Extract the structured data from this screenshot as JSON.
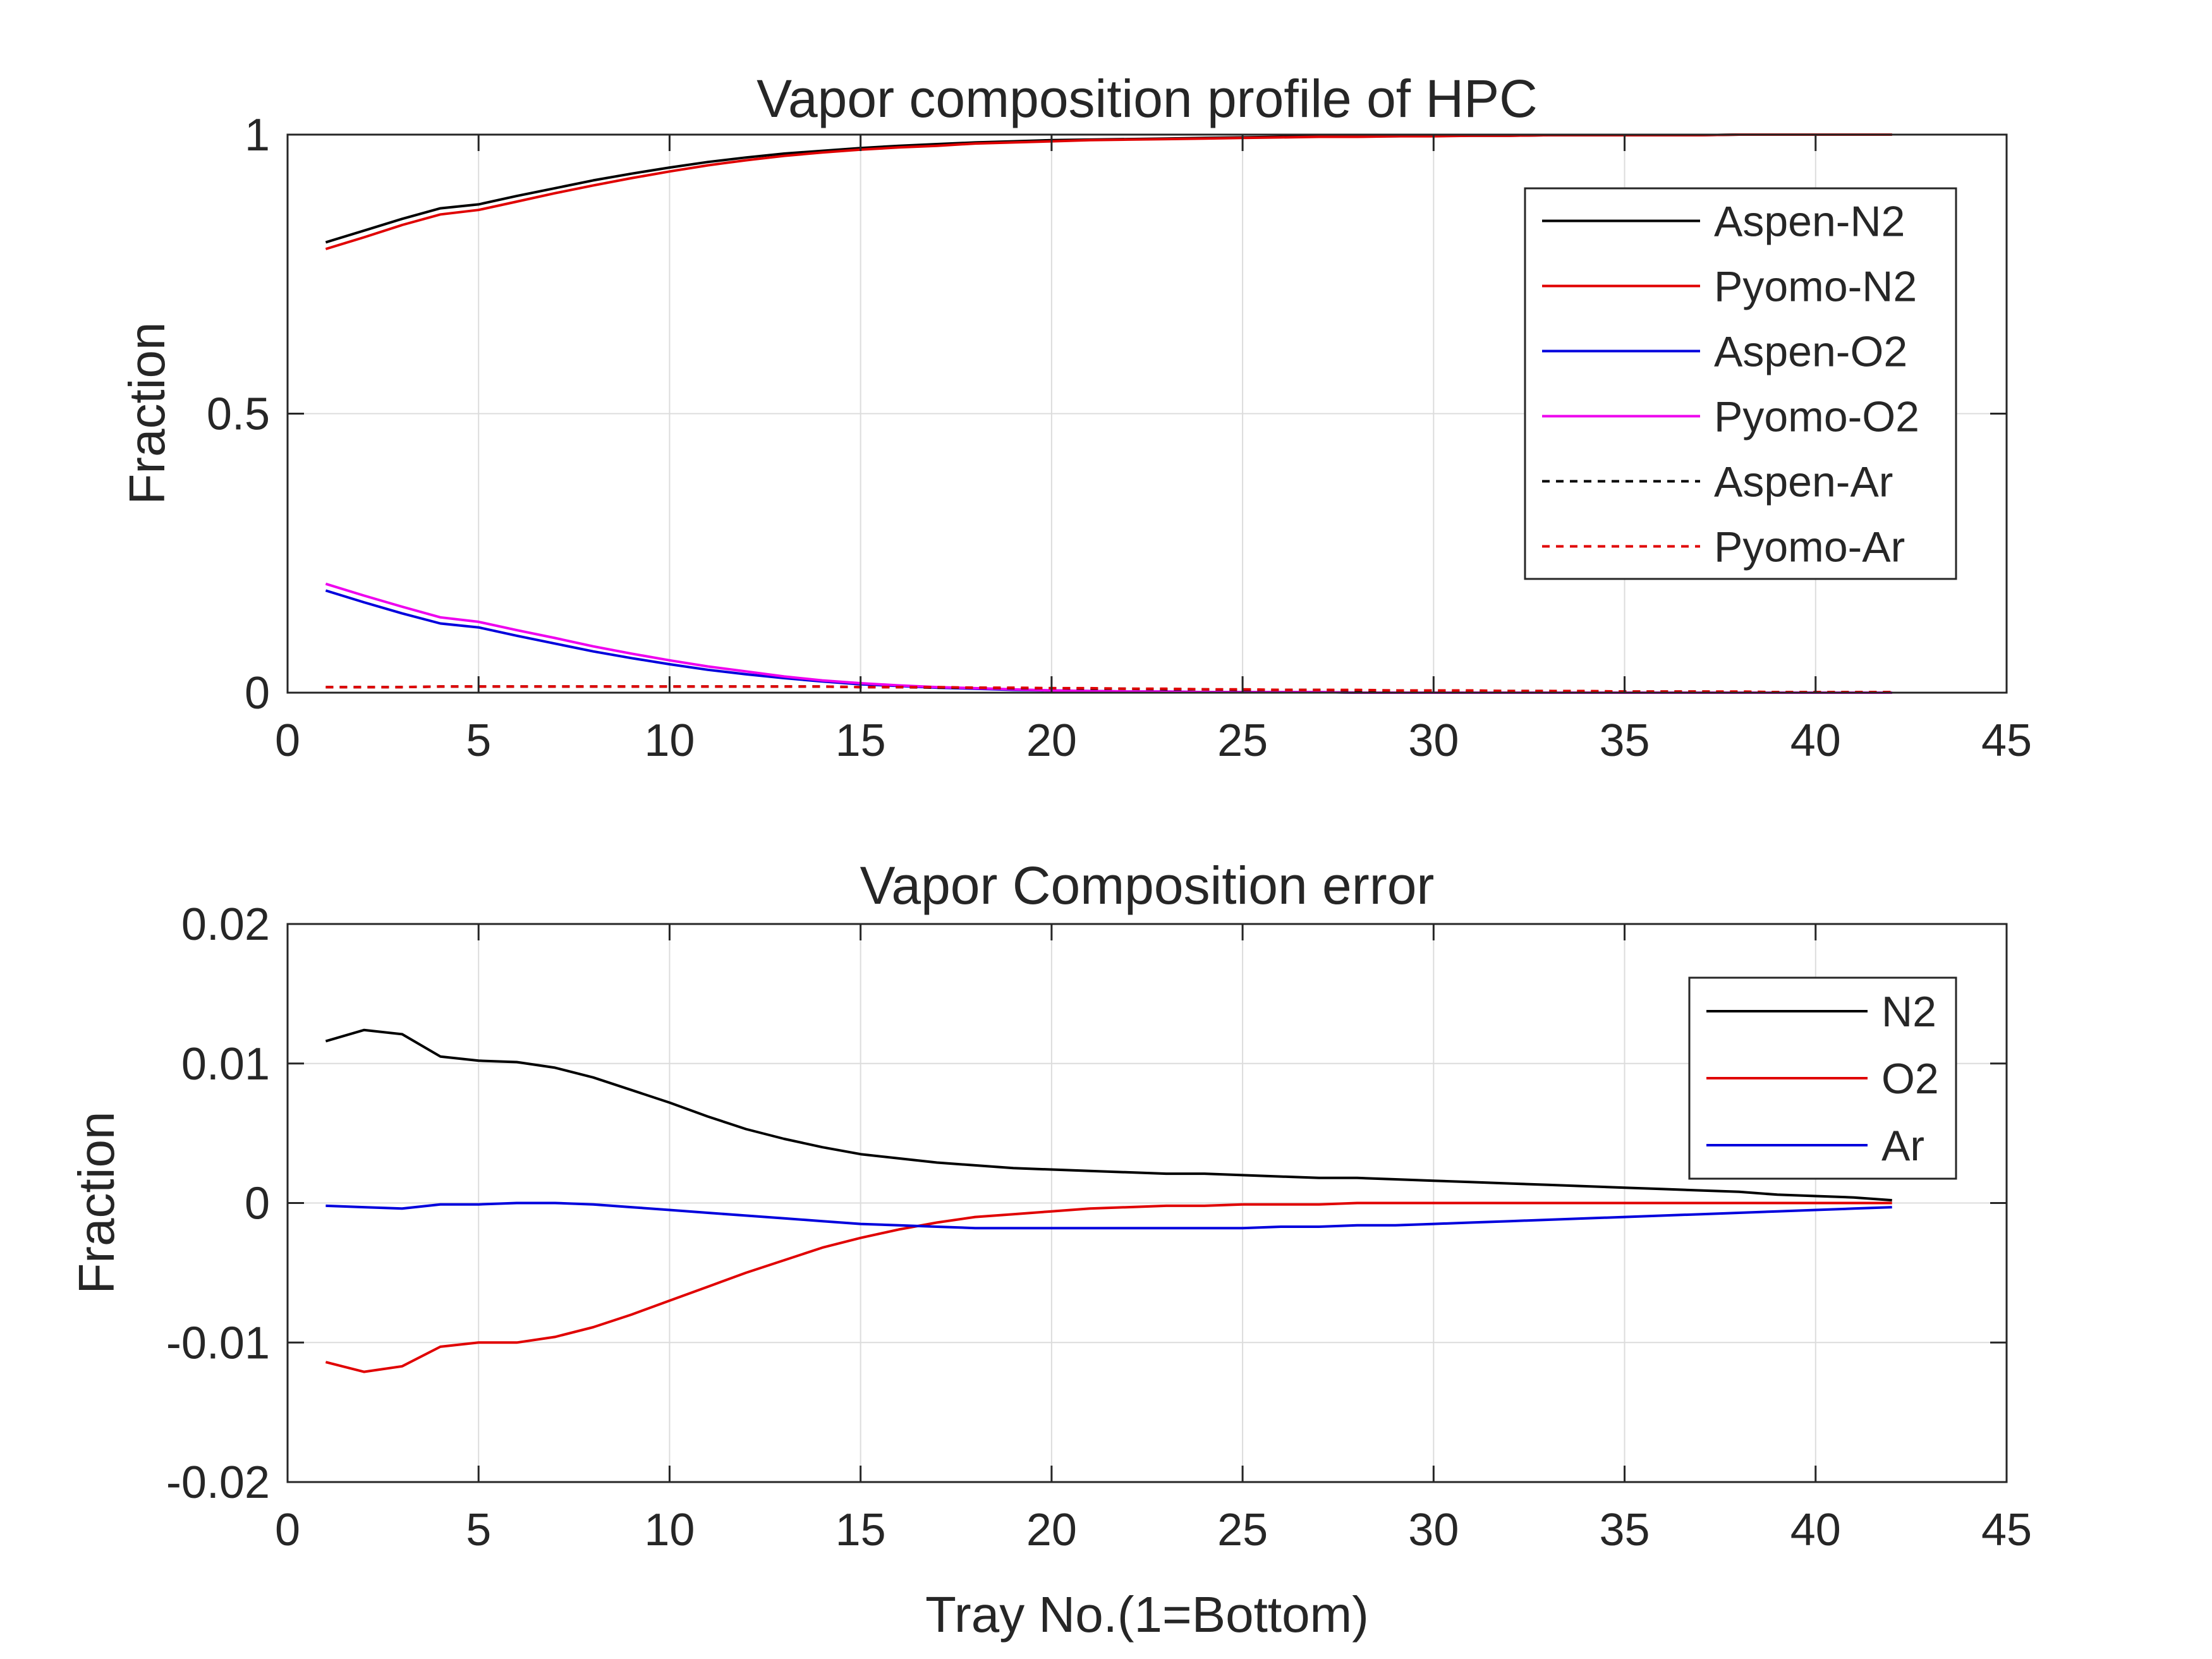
{
  "chart_data": [
    {
      "type": "line",
      "title": "Vapor composition profile of HPC",
      "xlabel": "",
      "ylabel": "Fraction",
      "xlim": [
        0,
        45
      ],
      "ylim": [
        0,
        1
      ],
      "xticks": [
        "0",
        "5",
        "10",
        "15",
        "20",
        "25",
        "30",
        "35",
        "40",
        "45"
      ],
      "yticks": [
        "0",
        "0.5",
        "1"
      ],
      "grid": true,
      "legend_position": "top-right",
      "x": [
        1,
        2,
        3,
        4,
        5,
        6,
        7,
        8,
        9,
        10,
        11,
        12,
        13,
        14,
        15,
        16,
        17,
        18,
        19,
        20,
        21,
        22,
        23,
        24,
        25,
        26,
        27,
        28,
        29,
        30,
        31,
        32,
        33,
        34,
        35,
        36,
        37,
        38,
        39,
        40,
        41,
        42
      ],
      "series": [
        {
          "name": "Aspen-N2",
          "color": "#000000",
          "dash": false,
          "values": [
            0.807,
            0.828,
            0.849,
            0.868,
            0.875,
            0.89,
            0.904,
            0.918,
            0.93,
            0.941,
            0.951,
            0.959,
            0.966,
            0.971,
            0.976,
            0.98,
            0.983,
            0.986,
            0.988,
            0.99,
            0.991,
            0.992,
            0.993,
            0.994,
            0.995,
            0.996,
            0.996,
            0.997,
            0.997,
            0.998,
            0.998,
            0.998,
            0.999,
            0.999,
            0.999,
            0.999,
            0.999,
            1.0,
            1.0,
            1.0,
            1.0,
            1.0
          ]
        },
        {
          "name": "Pyomo-N2",
          "color": "#e00000",
          "dash": false,
          "values": [
            0.795,
            0.816,
            0.838,
            0.857,
            0.865,
            0.88,
            0.895,
            0.909,
            0.922,
            0.934,
            0.945,
            0.954,
            0.962,
            0.968,
            0.973,
            0.977,
            0.98,
            0.984,
            0.986,
            0.988,
            0.99,
            0.991,
            0.992,
            0.993,
            0.994,
            0.995,
            0.996,
            0.996,
            0.997,
            0.997,
            0.998,
            0.998,
            0.999,
            0.999,
            0.999,
            0.999,
            0.999,
            1.0,
            1.0,
            1.0,
            1.0,
            1.0
          ]
        },
        {
          "name": "Aspen-O2",
          "color": "#0000dd",
          "dash": false,
          "values": [
            0.183,
            0.162,
            0.142,
            0.124,
            0.117,
            0.102,
            0.088,
            0.074,
            0.062,
            0.051,
            0.041,
            0.033,
            0.026,
            0.02,
            0.015,
            0.012,
            0.009,
            0.007,
            0.005,
            0.004,
            0.003,
            0.002,
            0.002,
            0.001,
            0.001,
            0.001,
            0.001,
            0.0,
            0.0,
            0.0,
            0.0,
            0.0,
            0.0,
            0.0,
            0.0,
            0.0,
            0.0,
            0.0,
            0.0,
            0.0,
            0.0,
            0.0
          ]
        },
        {
          "name": "Pyomo-O2",
          "color": "#ee00ee",
          "dash": false,
          "values": [
            0.195,
            0.174,
            0.154,
            0.135,
            0.127,
            0.112,
            0.098,
            0.083,
            0.07,
            0.058,
            0.047,
            0.038,
            0.029,
            0.022,
            0.017,
            0.013,
            0.01,
            0.008,
            0.006,
            0.004,
            0.003,
            0.002,
            0.002,
            0.001,
            0.001,
            0.001,
            0.001,
            0.0,
            0.0,
            0.0,
            0.0,
            0.0,
            0.0,
            0.0,
            0.0,
            0.0,
            0.0,
            0.0,
            0.0,
            0.0,
            0.0,
            0.0
          ]
        },
        {
          "name": "Aspen-Ar",
          "color": "#000000",
          "dash": true,
          "values": [
            0.01,
            0.01,
            0.01,
            0.011,
            0.011,
            0.011,
            0.011,
            0.011,
            0.011,
            0.011,
            0.011,
            0.011,
            0.011,
            0.011,
            0.01,
            0.01,
            0.009,
            0.009,
            0.008,
            0.008,
            0.007,
            0.007,
            0.006,
            0.006,
            0.005,
            0.005,
            0.005,
            0.004,
            0.004,
            0.004,
            0.003,
            0.003,
            0.003,
            0.002,
            0.002,
            0.002,
            0.002,
            0.001,
            0.001,
            0.001,
            0.001,
            0.001
          ]
        },
        {
          "name": "Pyomo-Ar",
          "color": "#e00000",
          "dash": true,
          "values": [
            0.01,
            0.01,
            0.01,
            0.011,
            0.011,
            0.011,
            0.011,
            0.011,
            0.011,
            0.011,
            0.011,
            0.011,
            0.011,
            0.011,
            0.01,
            0.01,
            0.01,
            0.009,
            0.009,
            0.008,
            0.008,
            0.007,
            0.007,
            0.006,
            0.006,
            0.005,
            0.005,
            0.005,
            0.004,
            0.004,
            0.004,
            0.003,
            0.003,
            0.003,
            0.002,
            0.002,
            0.002,
            0.002,
            0.001,
            0.001,
            0.001,
            0.001
          ]
        }
      ]
    },
    {
      "type": "line",
      "title": "Vapor Composition error",
      "xlabel": "Tray No.(1=Bottom)",
      "ylabel": "Fraction",
      "xlim": [
        0,
        45
      ],
      "ylim": [
        -0.02,
        0.02
      ],
      "xticks": [
        "0",
        "5",
        "10",
        "15",
        "20",
        "25",
        "30",
        "35",
        "40",
        "45"
      ],
      "yticks": [
        "-0.02",
        "-0.01",
        "0",
        "0.01",
        "0.02"
      ],
      "grid": true,
      "legend_position": "top-right",
      "x": [
        1,
        2,
        3,
        4,
        5,
        6,
        7,
        8,
        9,
        10,
        11,
        12,
        13,
        14,
        15,
        16,
        17,
        18,
        19,
        20,
        21,
        22,
        23,
        24,
        25,
        26,
        27,
        28,
        29,
        30,
        31,
        32,
        33,
        34,
        35,
        36,
        37,
        38,
        39,
        40,
        41,
        42
      ],
      "series": [
        {
          "name": "N2",
          "color": "#000000",
          "dash": false,
          "values": [
            0.0116,
            0.0124,
            0.0121,
            0.0105,
            0.0102,
            0.0101,
            0.0097,
            0.009,
            0.0081,
            0.0072,
            0.0062,
            0.0053,
            0.0046,
            0.004,
            0.0035,
            0.0032,
            0.0029,
            0.0027,
            0.0025,
            0.0024,
            0.0023,
            0.0022,
            0.0021,
            0.0021,
            0.002,
            0.0019,
            0.0018,
            0.0018,
            0.0017,
            0.0016,
            0.0015,
            0.0014,
            0.0013,
            0.0012,
            0.0011,
            0.001,
            0.0009,
            0.0008,
            0.0006,
            0.0005,
            0.0004,
            0.0002
          ]
        },
        {
          "name": "O2",
          "color": "#e00000",
          "dash": false,
          "values": [
            -0.0114,
            -0.0121,
            -0.0117,
            -0.0103,
            -0.01,
            -0.01,
            -0.0096,
            -0.0089,
            -0.008,
            -0.007,
            -0.006,
            -0.005,
            -0.0041,
            -0.0032,
            -0.0025,
            -0.0019,
            -0.0014,
            -0.001,
            -0.0008,
            -0.0006,
            -0.0004,
            -0.0003,
            -0.0002,
            -0.0002,
            -0.0001,
            -0.0001,
            -0.0001,
            0.0,
            0.0,
            0.0,
            0.0,
            0.0,
            0.0,
            0.0,
            0.0,
            0.0,
            0.0,
            0.0,
            0.0,
            0.0,
            0.0,
            0.0
          ]
        },
        {
          "name": "Ar",
          "color": "#0000dd",
          "dash": false,
          "values": [
            -0.0002,
            -0.0003,
            -0.0004,
            -0.0001,
            -0.0001,
            0.0,
            0.0,
            -0.0001,
            -0.0003,
            -0.0005,
            -0.0007,
            -0.0009,
            -0.0011,
            -0.0013,
            -0.0015,
            -0.0016,
            -0.0017,
            -0.0018,
            -0.0018,
            -0.0018,
            -0.0018,
            -0.0018,
            -0.0018,
            -0.0018,
            -0.0018,
            -0.0017,
            -0.0017,
            -0.0016,
            -0.0016,
            -0.0015,
            -0.0014,
            -0.0013,
            -0.0012,
            -0.0011,
            -0.001,
            -0.0009,
            -0.0008,
            -0.0007,
            -0.0006,
            -0.0005,
            -0.0004,
            -0.0003
          ]
        }
      ]
    }
  ]
}
